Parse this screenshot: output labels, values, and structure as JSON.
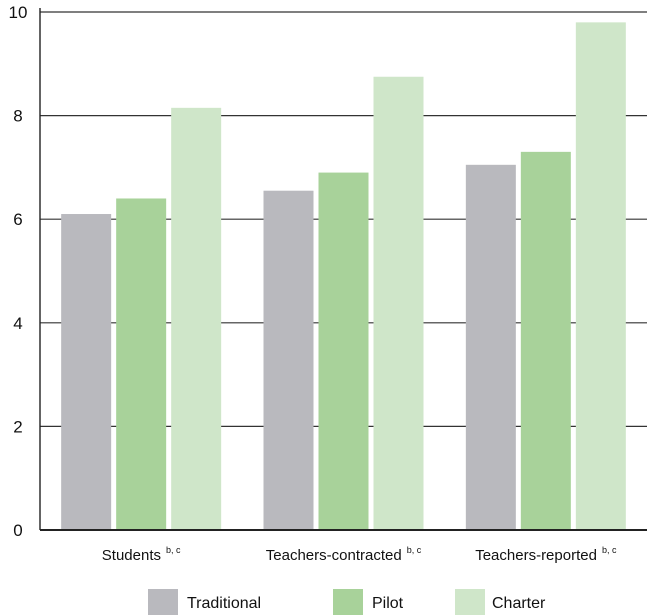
{
  "chart_data": {
    "type": "bar",
    "categories": [
      {
        "label": "Students",
        "superscript": "b, c"
      },
      {
        "label": "Teachers-contracted",
        "superscript": "b, c"
      },
      {
        "label": "Teachers-reported",
        "superscript": "b, c"
      }
    ],
    "series": [
      {
        "name": "Traditional",
        "color": "#b9b9be",
        "values": [
          6.1,
          6.55,
          7.05
        ]
      },
      {
        "name": "Pilot",
        "color": "#a8d29a",
        "values": [
          6.4,
          6.9,
          7.3
        ]
      },
      {
        "name": "Charter",
        "color": "#cfe6c9",
        "values": [
          8.15,
          8.75,
          9.8
        ]
      }
    ],
    "yticks": [
      "0",
      "2",
      "4",
      "6",
      "8",
      "10"
    ],
    "ylim": [
      0,
      10
    ],
    "grid": true,
    "legend_position": "bottom"
  }
}
